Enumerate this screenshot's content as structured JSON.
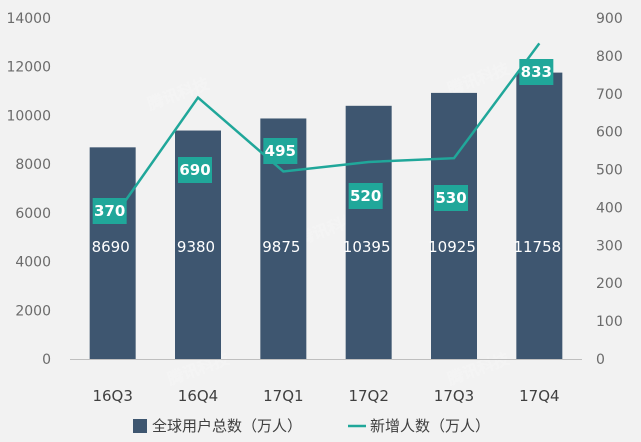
{
  "chart_data": {
    "type": "bar",
    "categories": [
      "16Q3",
      "16Q4",
      "17Q1",
      "17Q2",
      "17Q3",
      "17Q4"
    ],
    "series": [
      {
        "name": "全球用户总数（万人）",
        "type": "bar",
        "axis": "left",
        "values": [
          8690,
          9380,
          9875,
          10395,
          10925,
          11758
        ],
        "color": "#3e5670"
      },
      {
        "name": "新增人数（万人）",
        "type": "line",
        "axis": "right",
        "values": [
          370,
          690,
          495,
          520,
          530,
          833
        ],
        "color": "#20a79a"
      }
    ],
    "left_axis": {
      "ylim": [
        0,
        14000
      ],
      "ticks": [
        "0",
        "2000",
        "4000",
        "6000",
        "8000",
        "10000",
        "12000",
        "14000"
      ]
    },
    "right_axis": {
      "ylim": [
        0,
        900
      ],
      "ticks": [
        "0",
        "100",
        "200",
        "300",
        "400",
        "500",
        "600",
        "700",
        "800",
        "900"
      ]
    },
    "grid": false,
    "legend_position": "bottom",
    "watermark": "腾讯科技"
  }
}
